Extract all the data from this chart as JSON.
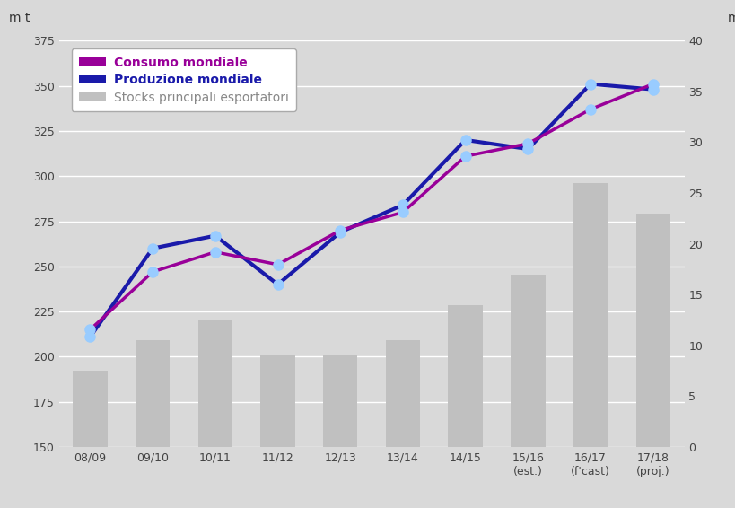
{
  "x_labels": [
    "08/09",
    "09/10",
    "10/11",
    "11/12",
    "12/13",
    "13/14",
    "14/15",
    "15/16\n(est.)",
    "16/17\n(f'cast)",
    "17/18\n(proj.)"
  ],
  "consumo": [
    215,
    247,
    258,
    251,
    270,
    280,
    311,
    318,
    337,
    351
  ],
  "produzione": [
    211,
    260,
    267,
    240,
    269,
    284,
    320,
    315,
    351,
    348
  ],
  "stocks": [
    7.5,
    10.5,
    12.5,
    9,
    9,
    10.5,
    14,
    17,
    26,
    23
  ],
  "bg_color": "#d9d9d9",
  "bar_color": "#c0c0c0",
  "consumo_color": "#990099",
  "produzione_color": "#1a1aaa",
  "marker_color": "#99ccff",
  "ylim_left": [
    150,
    375
  ],
  "ylim_right": [
    0,
    40
  ],
  "yticks_left": [
    150,
    175,
    200,
    225,
    250,
    275,
    300,
    325,
    350,
    375
  ],
  "yticks_right": [
    0,
    5,
    10,
    15,
    20,
    25,
    30,
    35,
    40
  ],
  "ylabel_left": "m t",
  "ylabel_right": "m t",
  "legend_consumo": "Consumo mondiale",
  "legend_produzione": "Produzione mondiale",
  "legend_stocks": "Stocks principali esportatori",
  "consumo_lw": 2.5,
  "produzione_lw": 3.0,
  "marker_size": 8
}
